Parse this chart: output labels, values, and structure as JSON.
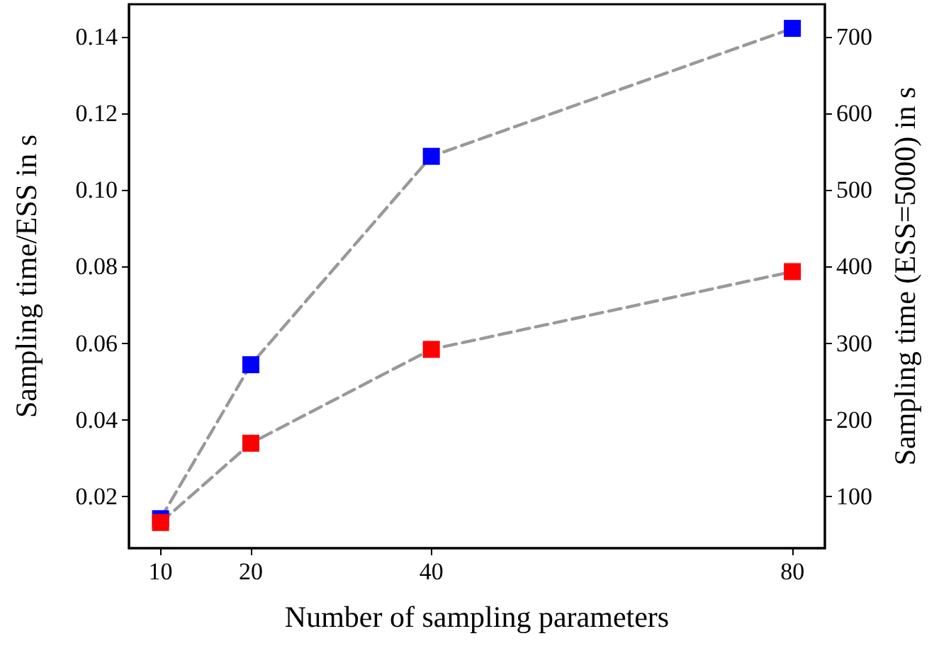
{
  "chart_data": {
    "type": "line",
    "xlabel": "Number of sampling parameters",
    "ylabel": "Sampling time/ESS in s",
    "y2label": "Sampling time (ESS=5000) in s",
    "x": [
      10,
      20,
      40,
      80
    ],
    "series": [
      {
        "color": "#0000ff",
        "values": [
          0.0142,
          0.0544,
          0.1088,
          0.1422
        ]
      },
      {
        "color": "#ff0000",
        "values": [
          0.0132,
          0.0339,
          0.0584,
          0.0787
        ]
      }
    ],
    "xlim": [
      6.5,
      83.6
    ],
    "xticks": [
      10,
      20,
      40,
      80
    ],
    "ylim": [
      0.0065,
      0.1485
    ],
    "yticks": [
      0.02,
      0.04,
      0.06,
      0.08,
      {
        "value": 0.1,
        "label": "0.10"
      },
      0.12,
      0.14
    ],
    "y2lim": [
      32.5,
      742.5
    ],
    "y2ticks": [
      100,
      200,
      300,
      400,
      500,
      600,
      700
    ],
    "grid": false,
    "marker": "square",
    "line_style": "dashed"
  }
}
